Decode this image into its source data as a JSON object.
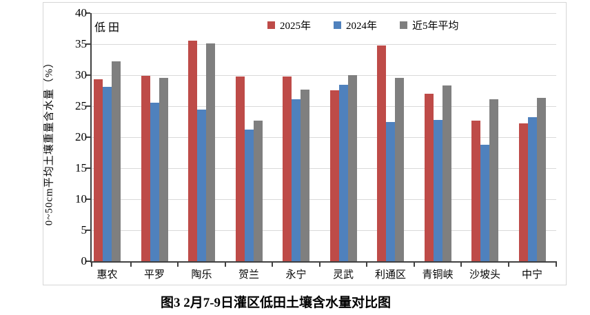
{
  "chart": {
    "caption": "图3  2月7-9日灌区低田土壤含水量对比图",
    "inner_label": "低田",
    "y_axis_title": "0~50cm平均土壤重量含水量（%）"
  },
  "chart_data": {
    "type": "bar",
    "title": "图3  2月7-9日灌区低田土壤含水量对比图",
    "inner_label": "低田",
    "xlabel": "",
    "ylabel": "0~50cm平均土壤重量含水量（%）",
    "ylim": [
      0,
      40
    ],
    "ytick_step": 5,
    "grid": true,
    "legend_position": "top",
    "categories": [
      "惠农",
      "平罗",
      "陶乐",
      "贺兰",
      "永宁",
      "灵武",
      "利通区",
      "青铜峡",
      "沙坡头",
      "中宁"
    ],
    "series": [
      {
        "name": "2025年",
        "color": "#be4b48",
        "values": [
          29.3,
          29.9,
          35.6,
          29.8,
          29.8,
          27.6,
          34.8,
          27.0,
          22.7,
          22.2
        ]
      },
      {
        "name": "2024年",
        "color": "#4f81bd",
        "values": [
          28.1,
          25.6,
          24.4,
          21.2,
          26.1,
          28.4,
          22.5,
          22.8,
          18.8,
          23.2
        ]
      },
      {
        "name": "近5年平均",
        "color": "#7f7f7f",
        "values": [
          32.2,
          29.6,
          35.1,
          22.7,
          27.7,
          30.0,
          29.6,
          28.3,
          26.1,
          26.3
        ]
      }
    ],
    "colors": {
      "axis": "#404040",
      "gridline": "#d9d9d9",
      "frame_border": "#d6d6d6",
      "background": "#ffffff"
    }
  }
}
